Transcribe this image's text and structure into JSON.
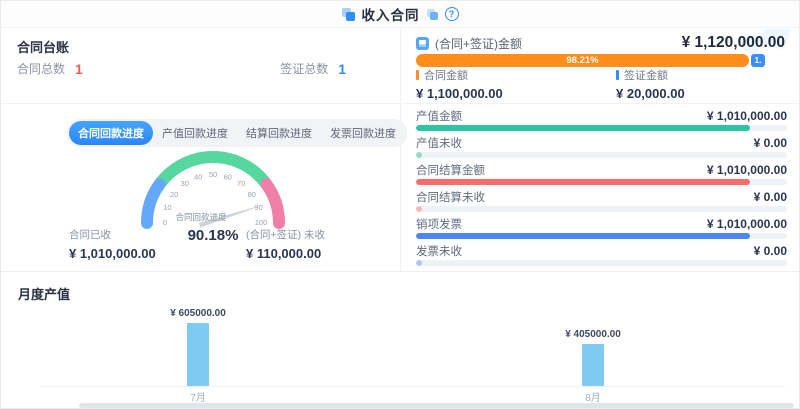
{
  "header": {
    "title": "收入合同",
    "help_label": "?"
  },
  "ledger": {
    "title": "合同台账",
    "stats": [
      {
        "label": "合同总数",
        "value": "1",
        "color": "#f65b5b"
      },
      {
        "label": "签证总数",
        "value": "1",
        "color": "#2f8ef8"
      }
    ],
    "tabs": [
      {
        "label": "合同回款进度",
        "active": true
      },
      {
        "label": "产值回款进度",
        "active": false
      },
      {
        "label": "结算回款进度",
        "active": false
      },
      {
        "label": "发票回款进度",
        "active": false
      }
    ],
    "gauge": {
      "label": "合同回款进度",
      "value_text": "90.18%",
      "ticks": [
        "0",
        "10",
        "20",
        "30",
        "40",
        "50",
        "60",
        "70",
        "80",
        "90",
        "100"
      ]
    },
    "received": {
      "label": "合同已收",
      "value": "¥ 1,010,000.00"
    },
    "unreceived": {
      "label": "(合同+签证) 未收",
      "value": "¥ 110,000.00"
    }
  },
  "summary": {
    "total": {
      "label": "(合同+签证)金额",
      "value": "¥ 1,120,000.00"
    },
    "split": {
      "percent_label": "98.21%",
      "tail_label": "1.",
      "main_color": "#ff8e1c",
      "tail_color": "#3d8ff7"
    },
    "legend": [
      {
        "label": "合同金额",
        "value": "¥ 1,100,000.00",
        "color": "#ff8e1c"
      },
      {
        "label": "签证金额",
        "value": "¥ 20,000.00",
        "color": "#2f8ef8"
      }
    ],
    "rows": [
      {
        "label": "产值金额",
        "value": "¥ 1,010,000.00",
        "color": "#2cc7a2",
        "percent": 90
      },
      {
        "label": "产值未收",
        "value": "¥ 0.00",
        "color": "#8fdcc9",
        "percent": 1.5
      },
      {
        "label": "合同结算金额",
        "value": "¥ 1,010,000.00",
        "color": "#f56d6d",
        "percent": 90
      },
      {
        "label": "合同结算未收",
        "value": "¥ 0.00",
        "color": "#f9b6b6",
        "percent": 1.5
      },
      {
        "label": "销项发票",
        "value": "¥ 1,010,000.00",
        "color": "#4b87f2",
        "percent": 90
      },
      {
        "label": "发票未收",
        "value": "¥ 0.00",
        "color": "#aec9f8",
        "percent": 1.5
      }
    ]
  },
  "monthly": {
    "title": "月度产值"
  },
  "chart_data": [
    {
      "type": "gauge",
      "title": "合同回款进度",
      "value": 90.18,
      "unit": "%",
      "min": 0,
      "max": 100,
      "tick_step": 10,
      "segments": [
        {
          "from": 0,
          "to": 20,
          "color": "#63a8f9"
        },
        {
          "from": 20,
          "to": 80,
          "color": "#56d79e"
        },
        {
          "from": 80,
          "to": 100,
          "color": "#ef7fa7"
        }
      ]
    },
    {
      "type": "bar",
      "title": "月度产值",
      "categories": [
        "7月",
        "8月"
      ],
      "values": [
        605000,
        405000
      ],
      "data_labels": [
        "¥ 605000.00",
        "¥ 405000.00"
      ],
      "bar_color": "#7ecaf3",
      "ylim": [
        0,
        650000
      ],
      "grid": false,
      "legend_position": "none"
    }
  ]
}
